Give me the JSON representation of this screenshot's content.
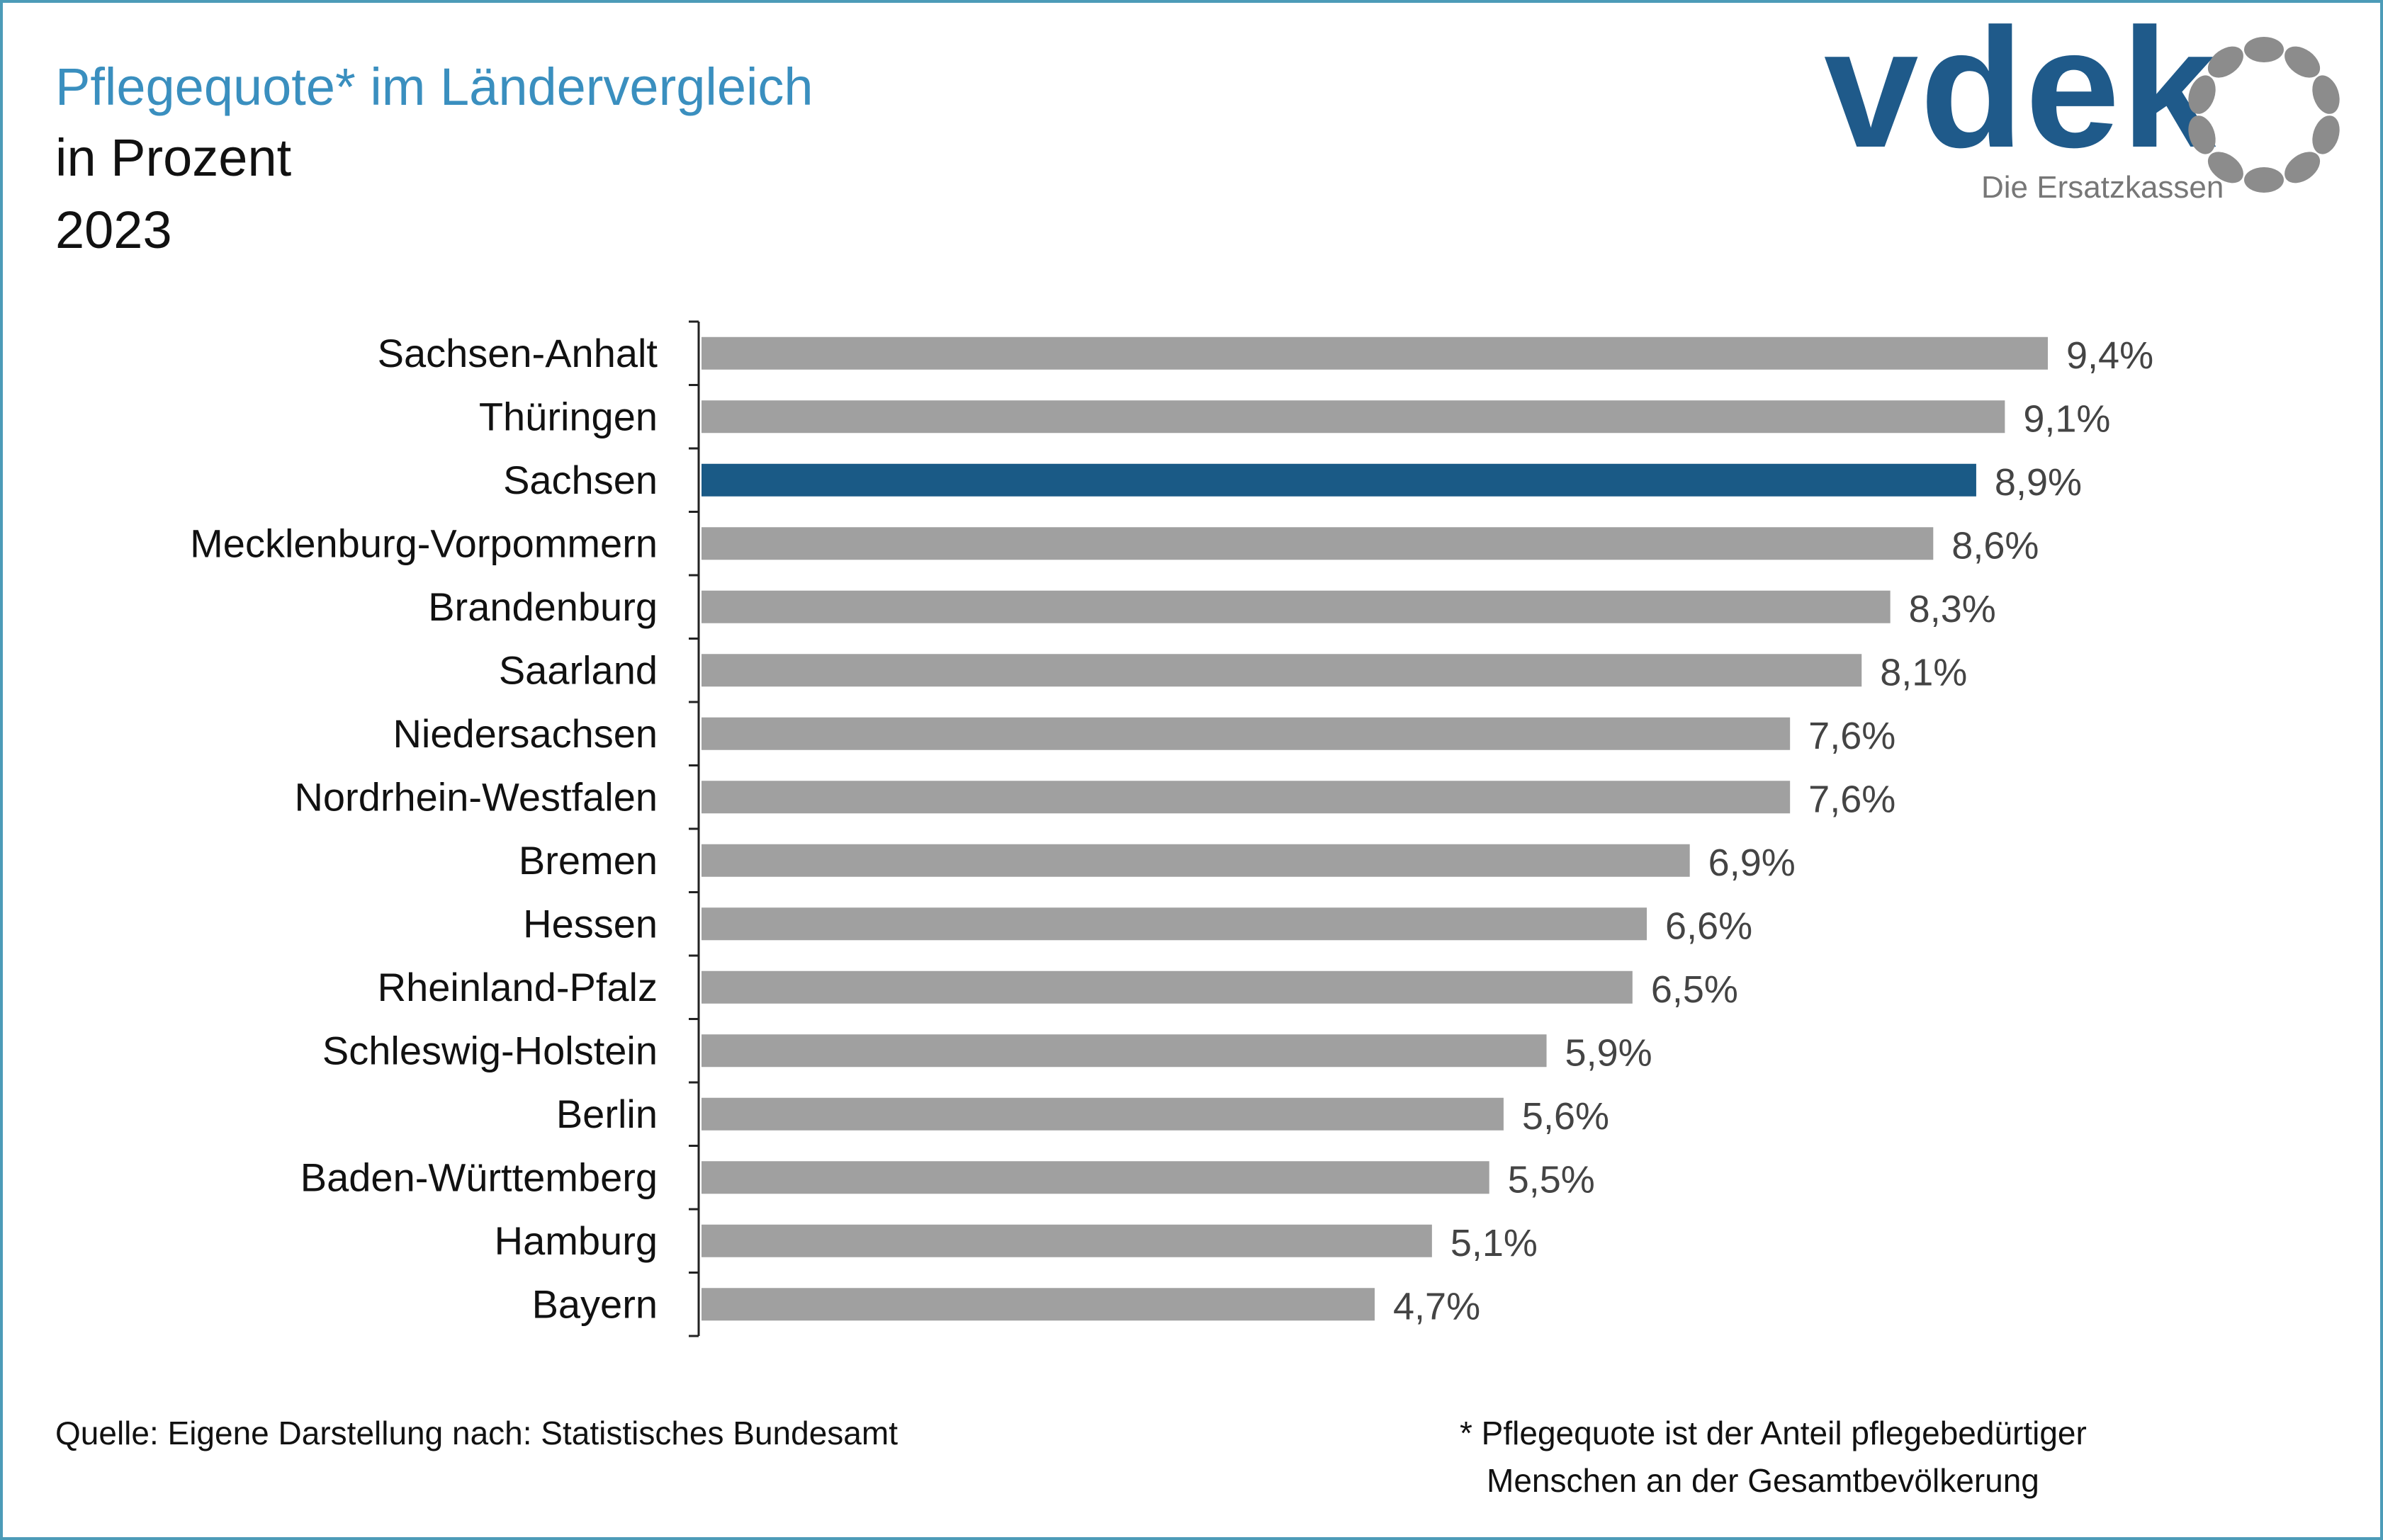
{
  "header": {
    "title": "Pflegequote* im Ländervergleich",
    "subtitle": "in Prozent",
    "year": "2023"
  },
  "logo": {
    "wordmark": "vdek",
    "tagline": "Die Ersatzkassen",
    "brand_color": "#1f5a8a",
    "ring_color": "#8c8c8c"
  },
  "chart_data": {
    "type": "bar",
    "orientation": "horizontal",
    "title": "Pflegequote* im Ländervergleich",
    "xlim": [
      0,
      9.4
    ],
    "grid": false,
    "categories": [
      "Sachsen-Anhalt",
      "Thüringen",
      "Sachsen",
      "Mecklenburg-Vorpommern",
      "Brandenburg",
      "Saarland",
      "Niedersachsen",
      "Nordrhein-Westfalen",
      "Bremen",
      "Hessen",
      "Rheinland-Pfalz",
      "Schleswig-Holstein",
      "Berlin",
      "Baden-Württemberg",
      "Hamburg",
      "Bayern"
    ],
    "values": [
      9.4,
      9.1,
      8.9,
      8.6,
      8.3,
      8.1,
      7.6,
      7.6,
      6.9,
      6.6,
      6.5,
      5.9,
      5.6,
      5.5,
      5.1,
      4.7
    ],
    "labels": [
      "9,4%",
      "9,1%",
      "8,9%",
      "8,6%",
      "8,3%",
      "8,1%",
      "7,6%",
      "7,6%",
      "6,9%",
      "6,6%",
      "6,5%",
      "5,9%",
      "5,6%",
      "5,5%",
      "5,1%",
      "4,7%"
    ],
    "highlight": "Sachsen",
    "bar_color": "#a0a0a0",
    "highlight_color": "#1a5a86"
  },
  "footer": {
    "source": "Quelle: Eigene Darstellung nach: Statistisches Bundesamt",
    "note_line1": "* Pflegequote ist der Anteil pflegebedürtiger",
    "note_line2": "Menschen an der Gesamtbevölkerung"
  }
}
